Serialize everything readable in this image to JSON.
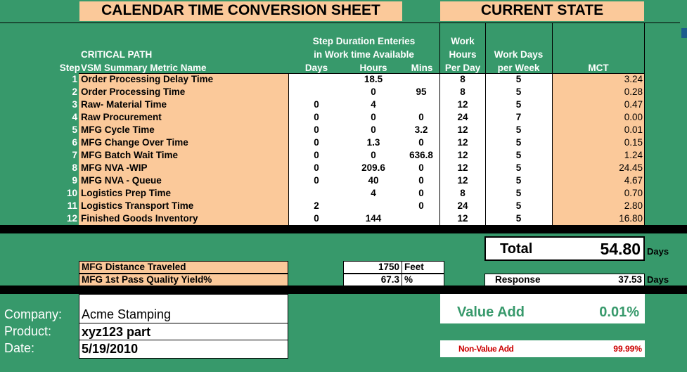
{
  "titles": {
    "sheet": "CALENDAR TIME CONVERSION SHEET",
    "state": "CURRENT STATE"
  },
  "headers": {
    "step": "Step",
    "critical_path": "CRITICAL PATH",
    "metric_name": "VSM Summary Metric Name",
    "duration_line1": "Step Duration Enteries",
    "duration_line2": "in Work time Available",
    "days": "Days",
    "hours": "Hours",
    "mins": "Mins",
    "work_hours_1": "Work",
    "work_hours_2": "Hours",
    "work_hours_3": "Per Day",
    "work_days_1": "Work Days",
    "work_days_2": "per Week",
    "mct": "MCT"
  },
  "rows": [
    {
      "step": "1",
      "name": "Order Processing Delay Time",
      "days": "",
      "hours": "18.5",
      "mins": "",
      "hpd": "8",
      "dpw": "5",
      "mct": "3.24"
    },
    {
      "step": "2",
      "name": "Order Processing Time",
      "days": "",
      "hours": "0",
      "mins": "95",
      "hpd": "8",
      "dpw": "5",
      "mct": "0.28"
    },
    {
      "step": "3",
      "name": "Raw- Material Time",
      "days": "0",
      "hours": "4",
      "mins": "",
      "hpd": "12",
      "dpw": "5",
      "mct": "0.47"
    },
    {
      "step": "4",
      "name": "Raw Procurement",
      "days": "0",
      "hours": "0",
      "mins": "0",
      "hpd": "24",
      "dpw": "7",
      "mct": "0.00"
    },
    {
      "step": "5",
      "name": "MFG Cycle Time",
      "days": "0",
      "hours": "0",
      "mins": "3.2",
      "hpd": "12",
      "dpw": "5",
      "mct": "0.01"
    },
    {
      "step": "6",
      "name": "MFG Change Over Time",
      "days": "0",
      "hours": "1.3",
      "mins": "0",
      "hpd": "12",
      "dpw": "5",
      "mct": "0.15"
    },
    {
      "step": "7",
      "name": "MFG Batch Wait Time",
      "days": "0",
      "hours": "0",
      "mins": "636.8",
      "hpd": "12",
      "dpw": "5",
      "mct": "1.24"
    },
    {
      "step": "8",
      "name": "MFG NVA -WIP",
      "days": "0",
      "hours": "209.6",
      "mins": "0",
      "hpd": "12",
      "dpw": "5",
      "mct": "24.45"
    },
    {
      "step": "9",
      "name": "MFG NVA - Queue",
      "days": "0",
      "hours": "40",
      "mins": "0",
      "hpd": "12",
      "dpw": "5",
      "mct": "4.67"
    },
    {
      "step": "10",
      "name": "Logistics Prep Time",
      "days": "",
      "hours": "4",
      "mins": "0",
      "hpd": "8",
      "dpw": "5",
      "mct": "0.70"
    },
    {
      "step": "11",
      "name": "Logistics Transport Time",
      "days": "2",
      "hours": "",
      "mins": "0",
      "hpd": "24",
      "dpw": "5",
      "mct": "2.80"
    },
    {
      "step": "12",
      "name": "Finished Goods Inventory",
      "days": "0",
      "hours": "144",
      "mins": "",
      "hpd": "12",
      "dpw": "5",
      "mct": "16.80"
    }
  ],
  "total": {
    "label": "Total",
    "value": "54.80",
    "unit": "Days"
  },
  "response": {
    "label": "Response",
    "value": "37.53",
    "unit": "Days"
  },
  "metrics": {
    "distance_label": "MFG Distance Traveled",
    "distance_value": "1750",
    "distance_unit": "Feet",
    "yield_label": "MFG 1st Pass Quality Yield%",
    "yield_value": "67.3",
    "yield_unit": "%"
  },
  "info": {
    "company_label": "Company:",
    "company_value": "Acme Stamping",
    "product_label": "Product:",
    "product_value": "xyz123 part",
    "date_label": "Date:",
    "date_value": "5/19/2010"
  },
  "value_add": {
    "label": "Value Add",
    "value": "0.01%"
  },
  "non_value_add": {
    "label": "Non-Value Add",
    "value": "99.99%"
  },
  "colors": {
    "background": "#37996b",
    "peach": "#fbc99a",
    "value_add_text": "#37996b",
    "non_value_add_text": "#cc0000"
  }
}
